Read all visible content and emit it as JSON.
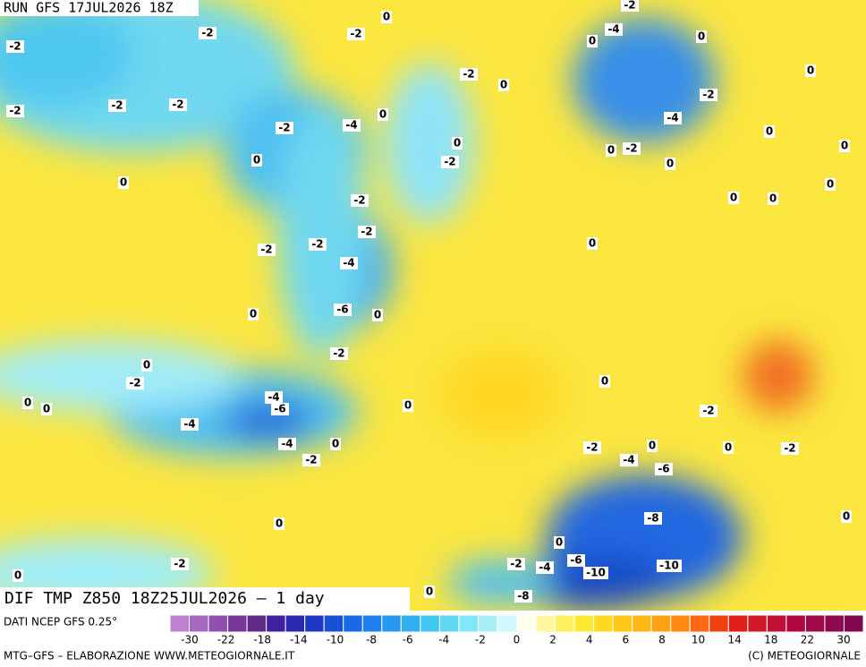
{
  "header": {
    "run": "RUN GFS 17JUL2026 18Z"
  },
  "map": {
    "title": "DIF TMP Z850 18Z25JUL2026 – 1 day",
    "labels": [
      "-2",
      "0",
      "-2",
      "-2",
      "-2",
      "-4",
      "0",
      "0",
      "-2",
      "-2",
      "-2",
      "0",
      "-2",
      "-4",
      "-2",
      "0",
      "0",
      "-2",
      "-4",
      "0",
      "0",
      "-2",
      "0",
      "-2",
      "0",
      "0",
      "0",
      "0",
      "0",
      "0",
      "0",
      "-2",
      "-2",
      "-2",
      "-2",
      "-4",
      "0",
      "0",
      "-6",
      "0",
      "-2",
      "0",
      "-2",
      "0",
      "-4",
      "-6",
      "0",
      "0",
      "-4",
      "0",
      "-2",
      "-4",
      "0",
      "-2",
      "0",
      "0",
      "-2",
      "-2",
      "-4",
      "-6",
      "-8",
      "0",
      "0",
      "0",
      "-2",
      "-2",
      "-4",
      "-6",
      "-10",
      "-10",
      "0",
      "0",
      "-8"
    ]
  },
  "legend": {
    "source": "DATI NCEP GFS 0.25°",
    "ticks": [
      "-30",
      "-22",
      "-18",
      "-14",
      "-10",
      "-8",
      "-6",
      "-4",
      "-2",
      "0",
      "2",
      "4",
      "6",
      "8",
      "10",
      "14",
      "18",
      "22",
      "30"
    ],
    "colors": [
      "#c080d0",
      "#a868c0",
      "#9050b0",
      "#783898",
      "#602888",
      "#4020a0",
      "#2828b0",
      "#2038c8",
      "#1850d8",
      "#1868e8",
      "#2080f0",
      "#2898f0",
      "#30b0f0",
      "#40c8f0",
      "#60d8f0",
      "#80e8f8",
      "#a8f0f8",
      "#d0f8fc",
      "#fffff0",
      "#fff8a0",
      "#fff060",
      "#ffe830",
      "#ffd820",
      "#ffc818",
      "#ffb818",
      "#ffa010",
      "#ff8810",
      "#ff6810",
      "#f04010",
      "#e02018",
      "#d01828",
      "#c01038",
      "#b00840",
      "#a00848",
      "#900850",
      "#800850"
    ]
  },
  "footer": {
    "left": "MTG–GFS – ELABORAZIONE WWW.METEOGIORNALE.IT",
    "right": "(C) METEOGIORNALE"
  }
}
